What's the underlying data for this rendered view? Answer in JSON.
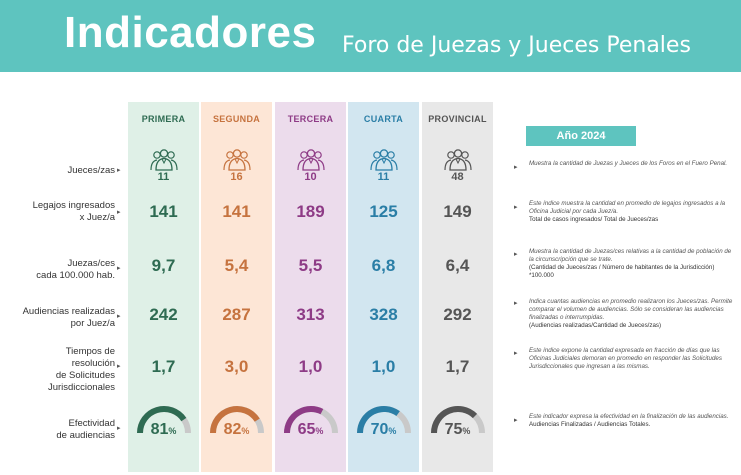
{
  "header": {
    "title": "Indicadores",
    "subtitle": "Foro de Juezas y Jueces Penales"
  },
  "year_label": "Año 2024",
  "colors": {
    "primera": "#2e6b52",
    "segunda": "#c6733f",
    "tercera": "#8e3b86",
    "cuarta": "#2a7ea6",
    "provincial": "#555555",
    "accent": "#5ec4bf"
  },
  "columns": [
    {
      "name": "PRIMERA",
      "color": "#2e6b52"
    },
    {
      "name": "SEGUNDA",
      "color": "#c6733f"
    },
    {
      "name": "TERCERA",
      "color": "#8e3b86"
    },
    {
      "name": "CUARTA",
      "color": "#2a7ea6"
    },
    {
      "name": "PROVINCIAL",
      "color": "#555555"
    }
  ],
  "rows": {
    "jueces": {
      "label": "Jueces/zas",
      "values": [
        "11",
        "16",
        "10",
        "11",
        "48"
      ],
      "desc": "Muestra la cantidad de Juezas y Jueces de los Foros en el Fuero Penal."
    },
    "legajos": {
      "label1": "Legajos ingresados",
      "label2": "x Juez/a",
      "values": [
        "141",
        "141",
        "189",
        "125",
        "149"
      ],
      "desc": "Este índice muestra la cantidad en promedio de legajos ingresados a la Oficina Judicial por cada Juez/a.",
      "formula": "Total de casos ingresados/ Total de Jueces/zas"
    },
    "juezas": {
      "label1": "Juezas/ces",
      "label2": "cada 100.000 hab.",
      "values": [
        "9,7",
        "5,4",
        "5,5",
        "6,8",
        "6,4"
      ],
      "desc": "Muestra la cantidad de Juezas/ces relativas a la cantidad de población de la circunscripción que se trate.",
      "formula": "(Cantidad de Jueces/zas / Número de habitantes de la Jurisdicción) *100.000"
    },
    "audiencias": {
      "label1": "Audiencias realizadas",
      "label2": "por Juez/a",
      "values": [
        "242",
        "287",
        "313",
        "328",
        "292"
      ],
      "desc": "Indica cuantas audiencias en promedio realizaron los Jueces/zas. Permite comparar el volumen de audiencias. Sólo se consideran las audiencias finalizadas o interrumpidas.",
      "formula": "(Audiencias realizadas/Cantidad de Jueces/zas)"
    },
    "tiempos": {
      "label1": "Tiempos de",
      "label2": "resolución",
      "label3": "de Solicitudes",
      "label4": "Jurisdiccionales",
      "values": [
        "1,7",
        "3,0",
        "1,0",
        "1,0",
        "1,7"
      ],
      "desc": "Este índice expone la cantidad expresada en fracción de días que las Oficinas Judiciales demoran en promedio en responder las Solicitudes Jurisdiccionales que ingresan a las mismas."
    },
    "efectividad": {
      "label1": "Efectividad",
      "label2": "de audiencias",
      "values": [
        81,
        82,
        65,
        70,
        75
      ],
      "unit": "%",
      "desc": "Este indicador expresa la efectividad en la finalización de las audiencias.",
      "formula": "Audiencias Finalizadas / Audiencias Totales."
    }
  }
}
